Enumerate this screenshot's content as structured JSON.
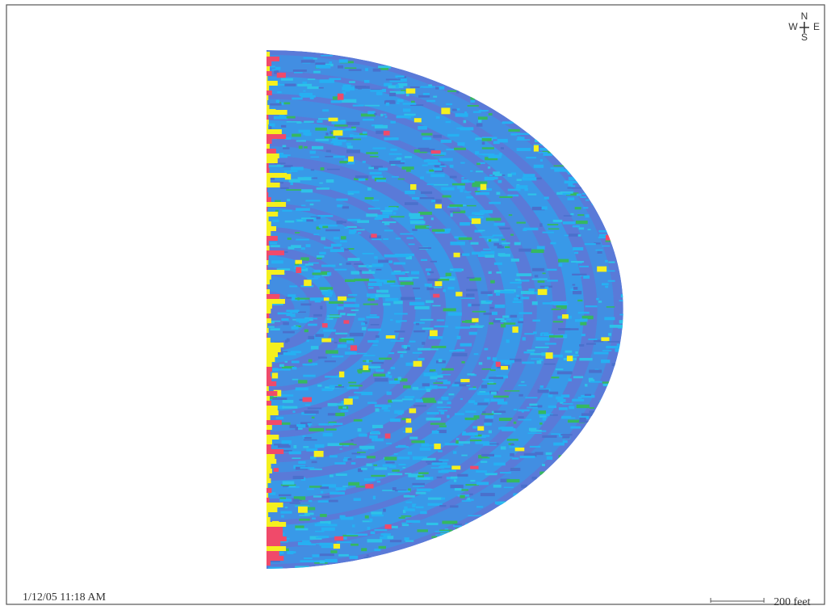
{
  "map": {
    "timestamp": "1/12/05 11:18 AM",
    "scale_label": "200 feet",
    "compass": {
      "n": "N",
      "w": "W",
      "e": "E",
      "s": "S"
    }
  }
}
